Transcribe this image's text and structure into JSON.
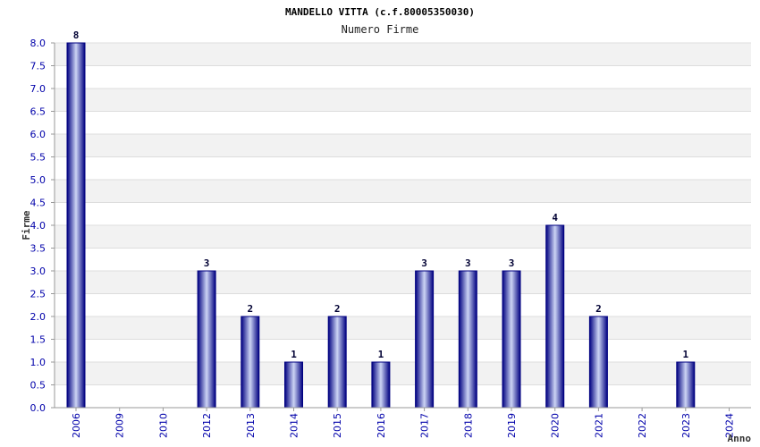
{
  "chart_data": {
    "type": "bar",
    "title": "MANDELLO VITTA (c.f.80005350030)",
    "subtitle": "Numero Firme",
    "xlabel": "Anno",
    "ylabel": "Firme",
    "categories": [
      "2006",
      "2009",
      "2010",
      "2012",
      "2013",
      "2014",
      "2015",
      "2016",
      "2017",
      "2018",
      "2019",
      "2020",
      "2021",
      "2022",
      "2023",
      "2024"
    ],
    "values": [
      8,
      0,
      0,
      3,
      2,
      1,
      2,
      1,
      3,
      3,
      3,
      4,
      2,
      0,
      1,
      0
    ],
    "data_labels": [
      "8",
      "",
      "",
      "3",
      "2",
      "1",
      "2",
      "1",
      "3",
      "3",
      "3",
      "4",
      "2",
      "",
      "1",
      ""
    ],
    "yticks": [
      "0.0",
      "0.5",
      "1.0",
      "1.5",
      "2.0",
      "2.5",
      "3.0",
      "3.5",
      "4.0",
      "4.5",
      "5.0",
      "5.5",
      "6.0",
      "6.5",
      "7.0",
      "7.5",
      "8.0"
    ],
    "ylim": [
      0,
      8
    ],
    "grid": true,
    "colors": {
      "bar_edge": "#000080",
      "bar_mid": "#ccd4f4",
      "band": "#f2f2f2",
      "tick_text": "#0000aa"
    }
  }
}
